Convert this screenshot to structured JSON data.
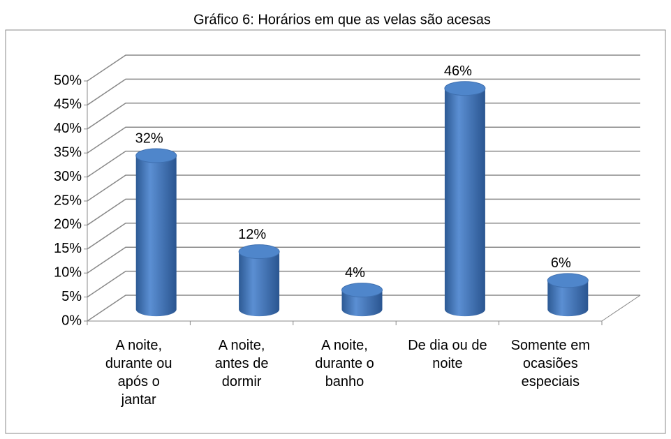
{
  "chart_data": {
    "type": "bar3d",
    "title": "Gráfico 6: Horários em que as velas são acesas",
    "categories": [
      "A noite, durante ou após o jantar",
      "A noite, antes de dormir",
      "A noite, durante o banho",
      "De dia ou de noite",
      "Somente em ocasiões especiais"
    ],
    "values": [
      32,
      12,
      4,
      46,
      6
    ],
    "value_labels": [
      "32%",
      "12%",
      "4%",
      "46%",
      "6%"
    ],
    "color": "#4a7ebf",
    "ylim": [
      0,
      50
    ],
    "yticks": [
      {
        "value": 0,
        "label": "0%"
      },
      {
        "value": 5,
        "label": "5%"
      },
      {
        "value": 10,
        "label": "10%"
      },
      {
        "value": 15,
        "label": "15%"
      },
      {
        "value": 20,
        "label": "20%"
      },
      {
        "value": 25,
        "label": "25%"
      },
      {
        "value": 30,
        "label": "30%"
      },
      {
        "value": 35,
        "label": "35%"
      },
      {
        "value": 40,
        "label": "40%"
      },
      {
        "value": 45,
        "label": "45%"
      },
      {
        "value": 50,
        "label": "50%"
      }
    ],
    "grid": true
  }
}
